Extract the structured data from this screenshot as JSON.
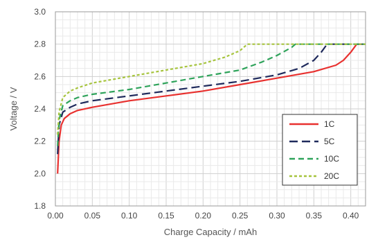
{
  "chart_data": {
    "type": "line",
    "title": "",
    "xlabel": "Charge Capacity / mAh",
    "ylabel": "Voltage / V",
    "xlim": [
      0.0,
      0.42
    ],
    "ylim": [
      1.8,
      3.0
    ],
    "x_ticks": [
      "0.00",
      "0.05",
      "0.10",
      "0.15",
      "0.20",
      "0.25",
      "0.30",
      "0.35",
      "0.40"
    ],
    "y_ticks": [
      "1.8",
      "2.0",
      "2.2",
      "2.4",
      "2.6",
      "2.8",
      "3.0"
    ],
    "grid": true,
    "legend_position": "bottom-right",
    "series": [
      {
        "name": "1C",
        "color": "#e8312f",
        "dash": "solid",
        "points": [
          [
            0.003,
            2.0
          ],
          [
            0.005,
            2.2
          ],
          [
            0.008,
            2.3
          ],
          [
            0.012,
            2.34
          ],
          [
            0.02,
            2.37
          ],
          [
            0.03,
            2.39
          ],
          [
            0.05,
            2.41
          ],
          [
            0.1,
            2.45
          ],
          [
            0.15,
            2.48
          ],
          [
            0.2,
            2.51
          ],
          [
            0.25,
            2.55
          ],
          [
            0.3,
            2.59
          ],
          [
            0.35,
            2.63
          ],
          [
            0.38,
            2.67
          ],
          [
            0.39,
            2.7
          ],
          [
            0.4,
            2.75
          ],
          [
            0.408,
            2.8
          ],
          [
            0.42,
            2.8
          ]
        ]
      },
      {
        "name": "5C",
        "color": "#1f2a5c",
        "dash": "long-dash",
        "points": [
          [
            0.003,
            2.12
          ],
          [
            0.005,
            2.3
          ],
          [
            0.01,
            2.38
          ],
          [
            0.02,
            2.41
          ],
          [
            0.03,
            2.43
          ],
          [
            0.05,
            2.45
          ],
          [
            0.1,
            2.48
          ],
          [
            0.15,
            2.51
          ],
          [
            0.2,
            2.54
          ],
          [
            0.25,
            2.57
          ],
          [
            0.3,
            2.61
          ],
          [
            0.33,
            2.65
          ],
          [
            0.35,
            2.7
          ],
          [
            0.36,
            2.75
          ],
          [
            0.368,
            2.8
          ],
          [
            0.42,
            2.8
          ]
        ]
      },
      {
        "name": "10C",
        "color": "#2ea35a",
        "dash": "medium-dash",
        "points": [
          [
            0.003,
            2.17
          ],
          [
            0.005,
            2.33
          ],
          [
            0.01,
            2.42
          ],
          [
            0.02,
            2.45
          ],
          [
            0.03,
            2.47
          ],
          [
            0.05,
            2.49
          ],
          [
            0.1,
            2.52
          ],
          [
            0.15,
            2.56
          ],
          [
            0.2,
            2.6
          ],
          [
            0.25,
            2.64
          ],
          [
            0.28,
            2.69
          ],
          [
            0.3,
            2.73
          ],
          [
            0.32,
            2.78
          ],
          [
            0.325,
            2.8
          ],
          [
            0.42,
            2.8
          ]
        ]
      },
      {
        "name": "20C",
        "color": "#a6c43d",
        "dash": "short-dash",
        "points": [
          [
            0.003,
            2.24
          ],
          [
            0.005,
            2.38
          ],
          [
            0.01,
            2.47
          ],
          [
            0.02,
            2.51
          ],
          [
            0.03,
            2.53
          ],
          [
            0.05,
            2.56
          ],
          [
            0.1,
            2.6
          ],
          [
            0.15,
            2.64
          ],
          [
            0.2,
            2.68
          ],
          [
            0.23,
            2.72
          ],
          [
            0.25,
            2.76
          ],
          [
            0.26,
            2.8
          ],
          [
            0.42,
            2.8
          ]
        ]
      }
    ]
  }
}
